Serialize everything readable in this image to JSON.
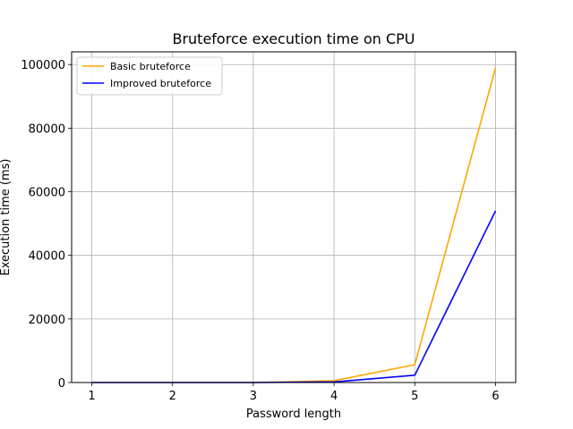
{
  "chart_data": {
    "type": "line",
    "title": "Bruteforce execution time on CPU",
    "xlabel": "Password length",
    "ylabel": "Execution time (ms)",
    "x": [
      1,
      2,
      3,
      4,
      5,
      6
    ],
    "xlim": [
      0.75,
      6.25
    ],
    "ylim": [
      0,
      104000
    ],
    "yticks": [
      0,
      20000,
      40000,
      60000,
      80000,
      100000
    ],
    "grid": true,
    "legend": "top-left",
    "series": [
      {
        "name": "Basic bruteforce",
        "color": "#ffa500",
        "values": [
          0,
          0,
          10,
          600,
          5600,
          99000
        ]
      },
      {
        "name": "Improved bruteforce",
        "color": "#0000ff",
        "values": [
          0,
          0,
          5,
          200,
          2300,
          54000
        ]
      }
    ]
  }
}
